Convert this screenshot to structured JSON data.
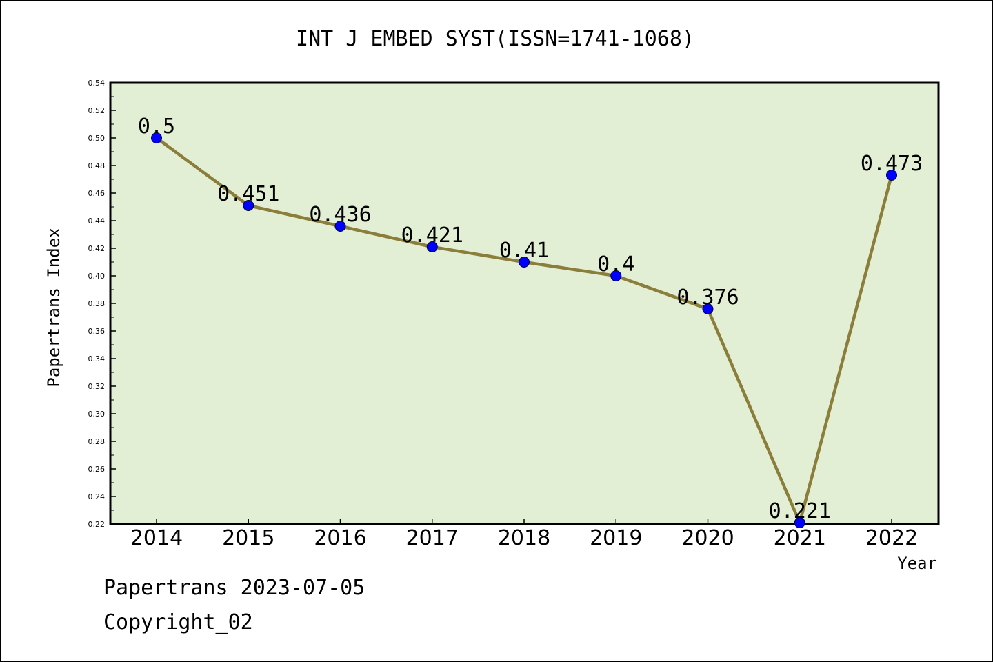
{
  "chart_data": {
    "type": "line",
    "title": "INT J EMBED SYST(ISSN=1741-1068)",
    "xlabel": "Year",
    "ylabel": "Papertrans Index",
    "categories": [
      "2014",
      "2015",
      "2016",
      "2017",
      "2018",
      "2019",
      "2020",
      "2021",
      "2022"
    ],
    "series": [
      {
        "values": [
          0.5,
          0.451,
          0.436,
          0.421,
          0.41,
          0.4,
          0.376,
          0.221,
          0.473
        ],
        "labels": [
          "0.5",
          "0.451",
          "0.436",
          "0.421",
          "0.41",
          "0.4",
          "0.376",
          "0.221",
          "0.473"
        ]
      }
    ],
    "ylim": [
      0.22,
      0.54
    ],
    "yticks": [
      "0.22",
      "0.24",
      "0.26",
      "0.28",
      "0.30",
      "0.32",
      "0.34",
      "0.36",
      "0.38",
      "0.40",
      "0.42",
      "0.44",
      "0.46",
      "0.48",
      "0.50",
      "0.52",
      "0.54"
    ],
    "grid": false,
    "colors": {
      "plot_background": "#e2efd5",
      "line": "#8b7d3a",
      "marker": "#0000ff"
    }
  },
  "footer": {
    "line1": "Papertrans 2023-07-05",
    "line2": "Copyright_02"
  }
}
